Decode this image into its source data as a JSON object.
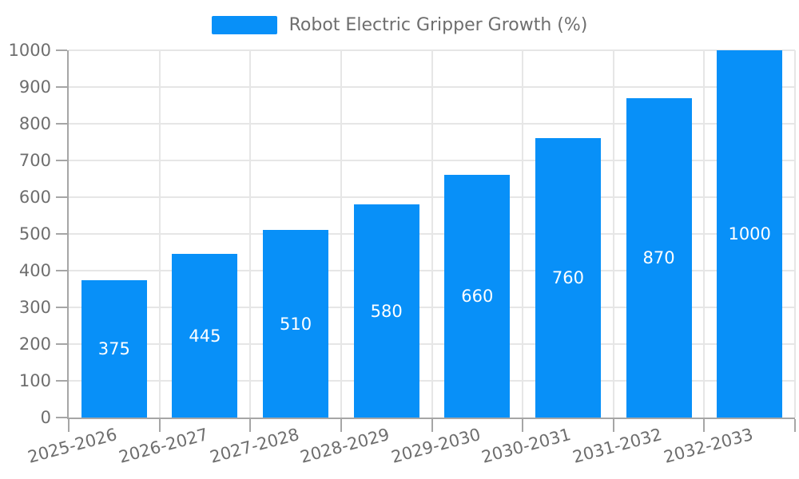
{
  "chart_data": {
    "type": "bar",
    "title": "Robot Electric Gripper Growth (%)",
    "legend": {
      "label": "Robot Electric Gripper Growth (%)",
      "position": "top-center"
    },
    "categories": [
      "2025-2026",
      "2026-2027",
      "2027-2028",
      "2028-2029",
      "2029-2030",
      "2030-2031",
      "2031-2032",
      "2032-2033"
    ],
    "values": [
      375,
      445,
      510,
      580,
      660,
      760,
      870,
      1000
    ],
    "value_labels_shown": true,
    "xlabel": "",
    "ylabel": "",
    "ylim": [
      0,
      1000
    ],
    "ytick_step": 100,
    "grid": "on",
    "x_label_rotation_deg": -15,
    "colors": {
      "bar": "#0890f8",
      "grid": "#e6e6e6",
      "axis": "#a6a6a6",
      "tick_text": "#6e6e6e",
      "legend_text": "#6e6e6e",
      "value_label": "#ffffff",
      "background": "#ffffff"
    }
  }
}
